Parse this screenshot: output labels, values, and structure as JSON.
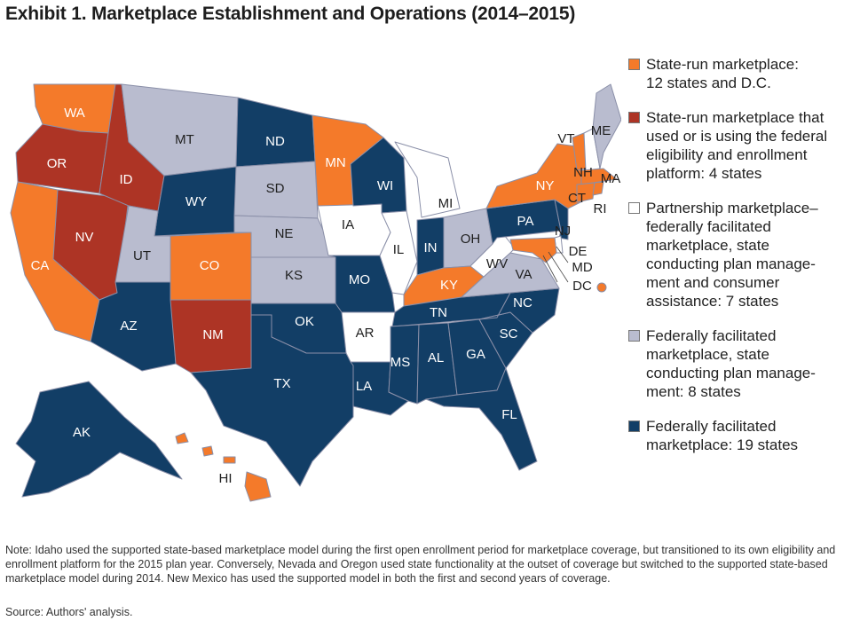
{
  "title": "Exhibit 1. Marketplace Establishment and Operations (2014–2015)",
  "colors": {
    "state_run": "#f47a2a",
    "state_run_federal": "#ad3425",
    "partnership": "#ffffff",
    "ffm_state_plan": "#b9bccf",
    "ffm": "#123e66",
    "border": "#8a8fa8"
  },
  "legend": [
    {
      "key": "state_run",
      "lines": [
        "State-run marketplace:",
        "12 states and D.C."
      ]
    },
    {
      "key": "state_run_federal",
      "lines": [
        "State-run marketplace that",
        "used or is using the federal",
        "eligibility and enrollment",
        "platform: 4 states"
      ]
    },
    {
      "key": "partnership",
      "lines": [
        "Partnership marketplace–",
        "federally facilitated",
        "marketplace, state",
        "conducting plan manage-",
        "ment and consumer",
        "assistance: 7 states"
      ]
    },
    {
      "key": "ffm_state_plan",
      "lines": [
        "Federally facilitated",
        "marketplace, state",
        "conducting plan manage-",
        "ment: 8 states"
      ]
    },
    {
      "key": "ffm",
      "lines": [
        "Federally facilitated",
        "marketplace: 19 states"
      ]
    }
  ],
  "states": {
    "WA": "state_run",
    "OR": "state_run_federal",
    "CA": "state_run",
    "NV": "state_run_federal",
    "ID": "state_run_federal",
    "MT": "ffm_state_plan",
    "WY": "ffm",
    "UT": "ffm_state_plan",
    "AZ": "ffm",
    "CO": "state_run",
    "NM": "state_run_federal",
    "ND": "ffm",
    "SD": "ffm_state_plan",
    "NE": "ffm_state_plan",
    "KS": "ffm_state_plan",
    "OK": "ffm",
    "TX": "ffm",
    "MN": "state_run",
    "IA": "partnership",
    "MO": "ffm",
    "AR": "partnership",
    "LA": "ffm",
    "WI": "ffm",
    "IL": "partnership",
    "MI": "partnership",
    "IN": "ffm",
    "OH": "ffm_state_plan",
    "KY": "state_run",
    "TN": "ffm",
    "MS": "ffm",
    "AL": "ffm",
    "GA": "ffm",
    "FL": "ffm",
    "SC": "ffm",
    "NC": "ffm",
    "VA": "ffm_state_plan",
    "WV": "partnership",
    "PA": "ffm",
    "NY": "state_run",
    "VT": "state_run",
    "NH": "partnership",
    "ME": "ffm_state_plan",
    "MA": "state_run",
    "CT": "state_run",
    "RI": "state_run",
    "NJ": "ffm",
    "DE": "partnership",
    "MD": "state_run",
    "DC": "state_run",
    "AK": "ffm",
    "HI": "state_run"
  },
  "labels": {
    "WA": "WA",
    "OR": "OR",
    "CA": "CA",
    "NV": "NV",
    "ID": "ID",
    "MT": "MT",
    "WY": "WY",
    "UT": "UT",
    "AZ": "AZ",
    "CO": "CO",
    "NM": "NM",
    "ND": "ND",
    "SD": "SD",
    "NE": "NE",
    "KS": "KS",
    "OK": "OK",
    "TX": "TX",
    "MN": "MN",
    "IA": "IA",
    "MO": "MO",
    "AR": "AR",
    "LA": "LA",
    "WI": "WI",
    "IL": "IL",
    "MI": "MI",
    "IN": "IN",
    "OH": "OH",
    "KY": "KY",
    "TN": "TN",
    "MS": "MS",
    "AL": "AL",
    "GA": "GA",
    "FL": "FL",
    "SC": "SC",
    "NC": "NC",
    "VA": "VA",
    "WV": "WV",
    "PA": "PA",
    "NY": "NY",
    "VT": "VT",
    "NH": "NH",
    "ME": "ME",
    "MA": "MA",
    "CT": "CT",
    "RI": "RI",
    "NJ": "NJ",
    "DE": "DE",
    "MD": "MD",
    "DC": "DC",
    "AK": "AK",
    "HI": "HI"
  },
  "note": "Note: Idaho used the supported state-based marketplace model during the first open enrollment period for marketplace coverage, but transitioned to its own eligibility and enrollment platform for the 2015 plan year. Conversely, Nevada and Oregon used state functionality at the outset of coverage but switched to the supported state-based marketplace model during 2014. New Mexico has used the supported model in both the first and second years of coverage.",
  "source": "Source: Authors' analysis."
}
